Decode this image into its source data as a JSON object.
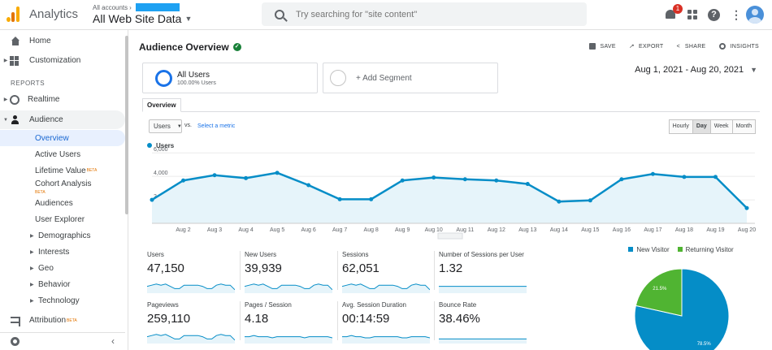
{
  "header": {
    "app_name": "Analytics",
    "accounts_label": "All accounts",
    "property_name": "All Web Site Data",
    "search_placeholder": "Try searching for \"site content\"",
    "notification_count": "1"
  },
  "sidebar": {
    "home": "Home",
    "customization": "Customization",
    "reports_label": "REPORTS",
    "realtime": "Realtime",
    "audience": "Audience",
    "audience_items": {
      "overview": "Overview",
      "active_users": "Active Users",
      "lifetime_value": "Lifetime Value",
      "cohort_analysis": "Cohort Analysis",
      "audiences": "Audiences",
      "user_explorer": "User Explorer",
      "demographics": "Demographics",
      "interests": "Interests",
      "geo": "Geo",
      "behavior": "Behavior",
      "technology": "Technology"
    },
    "beta_label": "BETA",
    "attribution": "Attribution"
  },
  "main": {
    "title": "Audience Overview",
    "actions": {
      "save": "SAVE",
      "export": "EXPORT",
      "share": "SHARE",
      "insights": "INSIGHTS"
    },
    "segment": {
      "name": "All Users",
      "share": "100.00% Users",
      "add_label": "+ Add Segment"
    },
    "date_range": "Aug 1, 2021 - Aug 20, 2021",
    "tab": "Overview",
    "metric_select": "Users",
    "vs_label": "vs.",
    "select_metric": "Select a metric",
    "granularity": [
      "Hourly",
      "Day",
      "Week",
      "Month"
    ],
    "granularity_selected": "Day"
  },
  "chart_data": [
    {
      "type": "area",
      "legend": "Users",
      "x": [
        "Aug 1",
        "Aug 2",
        "Aug 3",
        "Aug 4",
        "Aug 5",
        "Aug 6",
        "Aug 7",
        "Aug 8",
        "Aug 9",
        "Aug 10",
        "Aug 11",
        "Aug 12",
        "Aug 13",
        "Aug 14",
        "Aug 15",
        "Aug 16",
        "Aug 17",
        "Aug 18",
        "Aug 19",
        "Aug 20"
      ],
      "x_tick_labels": [
        "Aug 2",
        "Aug 3",
        "Aug 4",
        "Aug 5",
        "Aug 6",
        "Aug 7",
        "Aug 8",
        "Aug 9",
        "Aug 10",
        "Aug 11",
        "Aug 12",
        "Aug 13",
        "Aug 14",
        "Aug 15",
        "Aug 16",
        "Aug 17",
        "Aug 18",
        "Aug 19",
        "Aug 20"
      ],
      "values": [
        2000,
        3650,
        4100,
        3850,
        4300,
        3250,
        2050,
        2050,
        3650,
        3900,
        3750,
        3650,
        3350,
        1850,
        1950,
        3750,
        4200,
        3950,
        3950,
        1300
      ],
      "y_ticks": [
        "2,000",
        "4,000",
        "6,000"
      ],
      "ylim": [
        0,
        6500
      ],
      "color": "#058dc7",
      "fill": "#e6f4fa"
    },
    {
      "type": "pie",
      "labels": [
        "New Visitor",
        "Returning Visitor"
      ],
      "values": [
        78.5,
        21.5
      ],
      "value_labels": [
        "78.5%",
        "21.5%"
      ],
      "colors": [
        "#058dc7",
        "#50b432"
      ]
    }
  ],
  "stats": [
    {
      "label": "Users",
      "value": "47,150",
      "spark": [
        6,
        7,
        8,
        7,
        8,
        6,
        4,
        4,
        7,
        7,
        7,
        7,
        6,
        4,
        4,
        7,
        8,
        7,
        7,
        3
      ]
    },
    {
      "label": "New Users",
      "value": "39,939",
      "spark": [
        6,
        7,
        8,
        7,
        8,
        6,
        4,
        4,
        7,
        7,
        7,
        7,
        6,
        4,
        4,
        7,
        8,
        7,
        7,
        3
      ]
    },
    {
      "label": "Sessions",
      "value": "62,051",
      "spark": [
        6,
        7,
        8,
        7,
        8,
        6,
        4,
        4,
        7,
        7,
        7,
        7,
        6,
        4,
        4,
        7,
        8,
        7,
        7,
        3
      ]
    },
    {
      "label": "Number of Sessions per User",
      "value": "1.32",
      "spark": [
        6,
        6,
        6,
        6,
        6,
        6,
        6,
        6,
        6,
        6,
        6,
        6,
        6,
        6,
        6,
        6,
        6,
        6,
        6,
        6
      ]
    },
    {
      "label": "Pageviews",
      "value": "259,110",
      "spark": [
        6,
        7,
        8,
        7,
        8,
        6,
        4,
        4,
        7,
        7,
        7,
        7,
        6,
        4,
        4,
        7,
        8,
        7,
        7,
        3
      ]
    },
    {
      "label": "Pages / Session",
      "value": "4.18",
      "spark": [
        6,
        6,
        7,
        6,
        6,
        6,
        5,
        6,
        6,
        6,
        6,
        6,
        6,
        5,
        6,
        6,
        6,
        6,
        6,
        5
      ]
    },
    {
      "label": "Avg. Session Duration",
      "value": "00:14:59",
      "spark": [
        6,
        6,
        7,
        6,
        6,
        5,
        5,
        6,
        6,
        6,
        6,
        6,
        6,
        5,
        5,
        6,
        6,
        6,
        6,
        5
      ]
    },
    {
      "label": "Bounce Rate",
      "value": "38.46%",
      "spark": [
        4,
        4,
        4,
        4,
        4,
        4,
        4,
        4,
        4,
        4,
        4,
        4,
        4,
        4,
        4,
        4,
        4,
        4,
        4,
        4
      ]
    }
  ]
}
